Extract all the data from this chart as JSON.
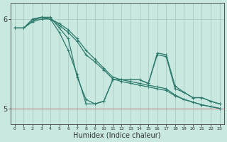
{
  "xlabel": "Humidex (Indice chaleur)",
  "bg_color": "#c8e8e0",
  "plot_bg_color": "#c8e8e0",
  "grid_color": "#aaccc4",
  "red_line_color": "#cc8888",
  "line_color": "#2d7a6c",
  "xlim": [
    -0.5,
    23.5
  ],
  "ylim": [
    4.82,
    6.18
  ],
  "yticks": [
    5,
    6
  ],
  "xticks": [
    0,
    1,
    2,
    3,
    4,
    5,
    6,
    7,
    8,
    9,
    10,
    11,
    12,
    13,
    14,
    15,
    16,
    17,
    18,
    19,
    20,
    21,
    22,
    23
  ],
  "line1_x": [
    0,
    1,
    2,
    3,
    4,
    5,
    6,
    7,
    8,
    9,
    10,
    11,
    12,
    13,
    14,
    15,
    16,
    17,
    18,
    19,
    20,
    21,
    22,
    23
  ],
  "line1_y": [
    5.9,
    5.9,
    6.0,
    6.02,
    6.0,
    5.95,
    5.88,
    5.78,
    5.65,
    5.55,
    5.45,
    5.35,
    5.32,
    5.3,
    5.28,
    5.26,
    5.24,
    5.22,
    5.15,
    5.1,
    5.07,
    5.04,
    5.02,
    5.0
  ],
  "line2_x": [
    0,
    1,
    2,
    3,
    4,
    5,
    6,
    7,
    8,
    9,
    10,
    11,
    12,
    13,
    14,
    15,
    16,
    17,
    18,
    19,
    20,
    21,
    22,
    23
  ],
  "line2_y": [
    5.9,
    5.9,
    5.98,
    6.02,
    6.02,
    5.9,
    5.78,
    5.35,
    5.1,
    5.05,
    5.08,
    5.32,
    5.32,
    5.32,
    5.32,
    5.28,
    5.6,
    5.58,
    5.22,
    5.18,
    5.12,
    5.12,
    5.08,
    5.05
  ],
  "line3_x": [
    2,
    3,
    4,
    5,
    6,
    7,
    8,
    9,
    10,
    11,
    12,
    13,
    14,
    15,
    16,
    17,
    18,
    19,
    20,
    21,
    22,
    23
  ],
  "line3_y": [
    6.0,
    6.02,
    6.0,
    5.85,
    5.65,
    5.38,
    5.05,
    5.05,
    5.08,
    5.32,
    5.32,
    5.32,
    5.32,
    5.28,
    5.62,
    5.6,
    5.25,
    5.18,
    5.12,
    5.12,
    5.08,
    5.05
  ],
  "line4_x": [
    0,
    1,
    2,
    3,
    4,
    5,
    6,
    7,
    8,
    9,
    10,
    11,
    12,
    13,
    14,
    15,
    16,
    17,
    18,
    19,
    20,
    21,
    22,
    23
  ],
  "line4_y": [
    5.9,
    5.9,
    5.97,
    6.0,
    6.0,
    5.93,
    5.85,
    5.75,
    5.6,
    5.52,
    5.43,
    5.33,
    5.3,
    5.28,
    5.26,
    5.24,
    5.22,
    5.2,
    5.14,
    5.1,
    5.07,
    5.04,
    5.02,
    5.0
  ]
}
